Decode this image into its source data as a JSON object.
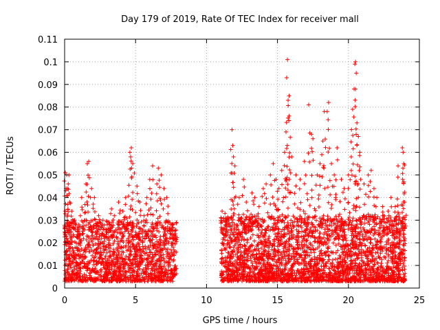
{
  "chart_data": {
    "type": "scatter",
    "title": "Day 179 of 2019, Rate Of TEC Index for receiver mall",
    "xlabel": "GPS time / hours",
    "ylabel": "ROTI / TECUs",
    "xlim": [
      0,
      25
    ],
    "ylim": [
      0,
      0.11
    ],
    "xticks": [
      "0",
      "5",
      "10",
      "15",
      "20",
      "25"
    ],
    "yticks": [
      "0",
      "0.01",
      "0.02",
      "0.03",
      "0.04",
      "0.05",
      "0.06",
      "0.07",
      "0.08",
      "0.09",
      "0.1",
      "0.11"
    ],
    "grid": true,
    "marker": "+",
    "color": "#ff0000",
    "data_gap_hours": [
      7.9,
      11.0
    ],
    "points": [
      [
        0.05,
        0.051
      ],
      [
        0.1,
        0.044
      ],
      [
        0.15,
        0.05
      ],
      [
        0.2,
        0.044
      ],
      [
        0.3,
        0.05
      ],
      [
        0.35,
        0.038
      ],
      [
        0.5,
        0.034
      ],
      [
        0.7,
        0.03
      ],
      [
        1.0,
        0.028
      ],
      [
        1.2,
        0.04
      ],
      [
        1.5,
        0.046
      ],
      [
        1.6,
        0.055
      ],
      [
        1.7,
        0.056
      ],
      [
        1.9,
        0.044
      ],
      [
        2.1,
        0.04
      ],
      [
        2.4,
        0.032
      ],
      [
        2.7,
        0.03
      ],
      [
        3.0,
        0.028
      ],
      [
        3.3,
        0.035
      ],
      [
        3.5,
        0.032
      ],
      [
        3.8,
        0.038
      ],
      [
        4.1,
        0.034
      ],
      [
        4.3,
        0.04
      ],
      [
        4.6,
        0.06
      ],
      [
        4.65,
        0.058
      ],
      [
        4.7,
        0.062
      ],
      [
        4.8,
        0.055
      ],
      [
        5.1,
        0.045
      ],
      [
        5.3,
        0.038
      ],
      [
        5.6,
        0.032
      ],
      [
        5.8,
        0.04
      ],
      [
        6.0,
        0.048
      ],
      [
        6.2,
        0.054
      ],
      [
        6.5,
        0.046
      ],
      [
        6.6,
        0.053
      ],
      [
        6.8,
        0.05
      ],
      [
        7.0,
        0.044
      ],
      [
        7.2,
        0.04
      ],
      [
        7.5,
        0.028
      ],
      [
        7.8,
        0.024
      ],
      [
        11.1,
        0.034
      ],
      [
        11.3,
        0.033
      ],
      [
        11.4,
        0.03
      ],
      [
        11.8,
        0.07
      ],
      [
        11.85,
        0.063
      ],
      [
        11.9,
        0.058
      ],
      [
        12.0,
        0.054
      ],
      [
        12.3,
        0.04
      ],
      [
        12.6,
        0.048
      ],
      [
        12.8,
        0.038
      ],
      [
        13.2,
        0.042
      ],
      [
        13.4,
        0.04
      ],
      [
        13.7,
        0.036
      ],
      [
        14.0,
        0.044
      ],
      [
        14.2,
        0.046
      ],
      [
        14.5,
        0.05
      ],
      [
        14.7,
        0.055
      ],
      [
        14.9,
        0.048
      ],
      [
        15.1,
        0.044
      ],
      [
        15.3,
        0.052
      ],
      [
        15.5,
        0.06
      ],
      [
        15.6,
        0.069
      ],
      [
        15.65,
        0.093
      ],
      [
        15.7,
        0.101
      ],
      [
        15.75,
        0.083
      ],
      [
        15.8,
        0.074
      ],
      [
        16.0,
        0.058
      ],
      [
        16.3,
        0.05
      ],
      [
        16.6,
        0.048
      ],
      [
        16.9,
        0.056
      ],
      [
        17.2,
        0.081
      ],
      [
        17.4,
        0.068
      ],
      [
        17.5,
        0.066
      ],
      [
        17.8,
        0.05
      ],
      [
        18.0,
        0.055
      ],
      [
        18.2,
        0.065
      ],
      [
        18.3,
        0.078
      ],
      [
        18.5,
        0.078
      ],
      [
        18.6,
        0.082
      ],
      [
        18.8,
        0.055
      ],
      [
        19.0,
        0.05
      ],
      [
        19.2,
        0.062
      ],
      [
        19.5,
        0.048
      ],
      [
        19.7,
        0.044
      ],
      [
        20.0,
        0.05
      ],
      [
        20.2,
        0.058
      ],
      [
        20.3,
        0.079
      ],
      [
        20.4,
        0.088
      ],
      [
        20.45,
        0.099
      ],
      [
        20.5,
        0.1
      ],
      [
        20.55,
        0.095
      ],
      [
        20.6,
        0.073
      ],
      [
        20.7,
        0.067
      ],
      [
        20.8,
        0.06
      ],
      [
        21.1,
        0.046
      ],
      [
        21.4,
        0.05
      ],
      [
        21.6,
        0.052
      ],
      [
        21.8,
        0.044
      ],
      [
        22.0,
        0.04
      ],
      [
        22.4,
        0.036
      ],
      [
        22.8,
        0.034
      ],
      [
        23.0,
        0.04
      ],
      [
        23.3,
        0.036
      ],
      [
        23.5,
        0.054
      ],
      [
        23.8,
        0.062
      ],
      [
        23.85,
        0.06
      ],
      [
        23.9,
        0.055
      ],
      [
        23.9,
        0.047
      ],
      [
        23.95,
        0.038
      ]
    ],
    "clusters": [
      {
        "x": [
          0.0,
          7.9
        ],
        "y": [
          0.003,
          0.03
        ],
        "count": 1400
      },
      {
        "x": [
          11.0,
          24.0
        ],
        "y": [
          0.003,
          0.032
        ],
        "count": 2600
      }
    ]
  }
}
